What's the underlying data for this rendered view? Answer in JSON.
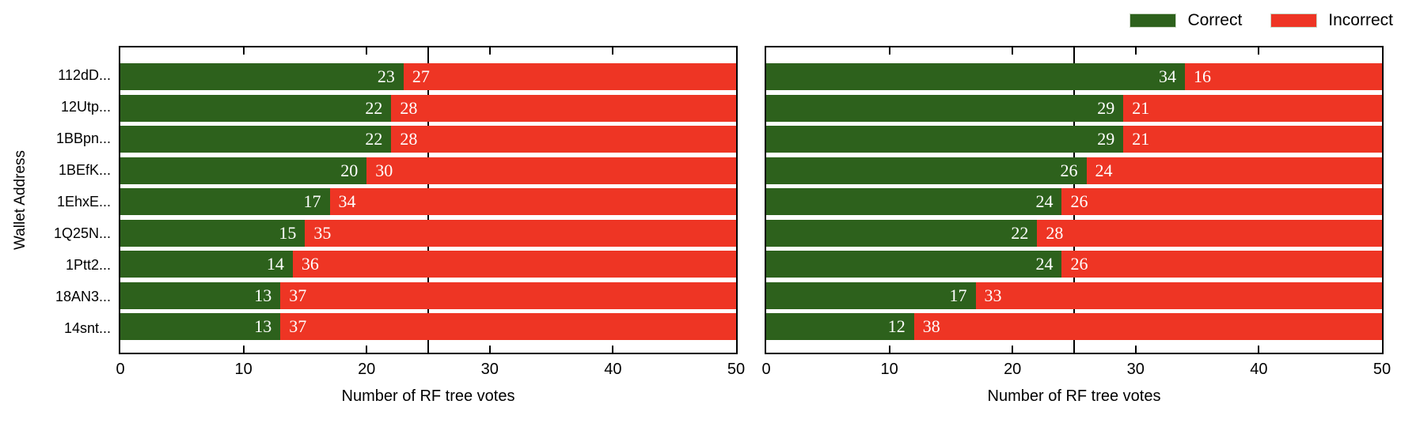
{
  "colors": {
    "correct": "#2d611c",
    "incorrect": "#ee3524",
    "frame": "#000000"
  },
  "legend": {
    "items": [
      {
        "label": "Correct",
        "color": "#2d611c"
      },
      {
        "label": "Incorrect",
        "color": "#ee3524"
      }
    ]
  },
  "axes": {
    "xlabel": "Number of RF tree votes",
    "ylabel": "Wallet Address",
    "xticks": [
      0,
      10,
      20,
      30,
      40,
      50
    ],
    "xmax": 50,
    "reference_line_x": 25
  },
  "chart_data": [
    {
      "type": "bar",
      "orientation": "horizontal",
      "stacked": true,
      "categories": [
        "112dD...",
        "12Utp...",
        "1BBpn...",
        "1BEfK...",
        "1EhxE...",
        "1Q25N...",
        "1Ptt2...",
        "18AN3...",
        "14snt..."
      ],
      "series": [
        {
          "name": "Correct",
          "color": "#2d611c",
          "values": [
            23,
            22,
            22,
            20,
            17,
            15,
            14,
            13,
            13
          ]
        },
        {
          "name": "Incorrect",
          "color": "#ee3524",
          "values": [
            27,
            28,
            28,
            30,
            34,
            35,
            36,
            37,
            37
          ]
        }
      ],
      "xlabel": "Number of RF tree votes",
      "ylabel": "Wallet Address",
      "xlim": [
        0,
        50
      ],
      "xticks": [
        0,
        10,
        20,
        30,
        40,
        50
      ],
      "reference_line_x": 25,
      "grid": false,
      "value_labels": "inside, white, at stack boundary"
    },
    {
      "type": "bar",
      "orientation": "horizontal",
      "stacked": true,
      "categories": [
        "112dD...",
        "12Utp...",
        "1BBpn...",
        "1BEfK...",
        "1EhxE...",
        "1Q25N...",
        "1Ptt2...",
        "18AN3...",
        "14snt..."
      ],
      "series": [
        {
          "name": "Correct",
          "color": "#2d611c",
          "values": [
            34,
            29,
            29,
            26,
            24,
            22,
            24,
            17,
            12
          ]
        },
        {
          "name": "Incorrect",
          "color": "#ee3524",
          "values": [
            16,
            21,
            21,
            24,
            26,
            28,
            26,
            33,
            38
          ]
        }
      ],
      "xlabel": "Number of RF tree votes",
      "ylabel": "",
      "xlim": [
        0,
        50
      ],
      "xticks": [
        0,
        10,
        20,
        30,
        40,
        50
      ],
      "reference_line_x": 25,
      "grid": false,
      "value_labels": "inside, white, at stack boundary"
    }
  ]
}
